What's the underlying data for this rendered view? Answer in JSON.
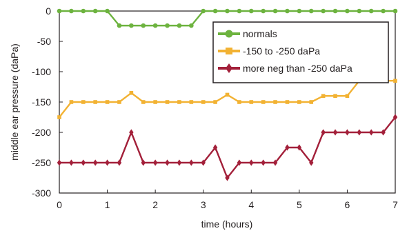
{
  "chart_data": {
    "type": "line",
    "xlabel": "time (hours)",
    "ylabel": "middle ear pressure (daPa)",
    "xlim": [
      0,
      7
    ],
    "ylim": [
      -300,
      0
    ],
    "xticks": [
      0,
      1,
      2,
      3,
      4,
      5,
      6,
      7
    ],
    "yticks": [
      0,
      -50,
      -100,
      -150,
      -200,
      -250,
      -300
    ],
    "xtick_labels": [
      "0",
      "1",
      "2",
      "3",
      "4",
      "5",
      "6",
      "7"
    ],
    "ytick_labels": [
      "0",
      "-50",
      "-100",
      "-150",
      "-200",
      "-250",
      "-300"
    ],
    "grid": false,
    "legend_position": "top-right",
    "x": [
      0,
      0.25,
      0.5,
      0.75,
      1,
      1.25,
      1.5,
      1.75,
      2,
      2.25,
      2.5,
      2.75,
      3,
      3.25,
      3.5,
      3.75,
      4,
      4.25,
      4.5,
      4.75,
      5,
      5.25,
      5.5,
      5.75,
      6,
      6.25,
      6.5,
      6.75,
      7
    ],
    "series": [
      {
        "name": "normals",
        "color": "#6db33f",
        "marker": "circle",
        "values": [
          0,
          0,
          0,
          0,
          0,
          -24,
          -24,
          -24,
          -24,
          -24,
          -24,
          -24,
          0,
          0,
          0,
          0,
          0,
          0,
          0,
          0,
          0,
          0,
          0,
          0,
          0,
          0,
          0,
          0,
          0
        ]
      },
      {
        "name": "-150 to -250 daPa",
        "color": "#f2b233",
        "marker": "square",
        "values": [
          -175,
          -150,
          -150,
          -150,
          -150,
          -150,
          -135,
          -150,
          -150,
          -150,
          -150,
          -150,
          -150,
          -150,
          -138,
          -150,
          -150,
          -150,
          -150,
          -150,
          -150,
          -150,
          -140,
          -140,
          -140,
          -115,
          -115,
          -115,
          -115
        ]
      },
      {
        "name": "more neg than -250 daPa",
        "color": "#a3203a",
        "marker": "diamond",
        "values": [
          -250,
          -250,
          -250,
          -250,
          -250,
          -250,
          -200,
          -250,
          -250,
          -250,
          -250,
          -250,
          -250,
          -225,
          -275,
          -250,
          -250,
          -250,
          -250,
          -225,
          -225,
          -250,
          -200,
          -200,
          -200,
          -200,
          -200,
          -200,
          -175
        ]
      }
    ]
  }
}
